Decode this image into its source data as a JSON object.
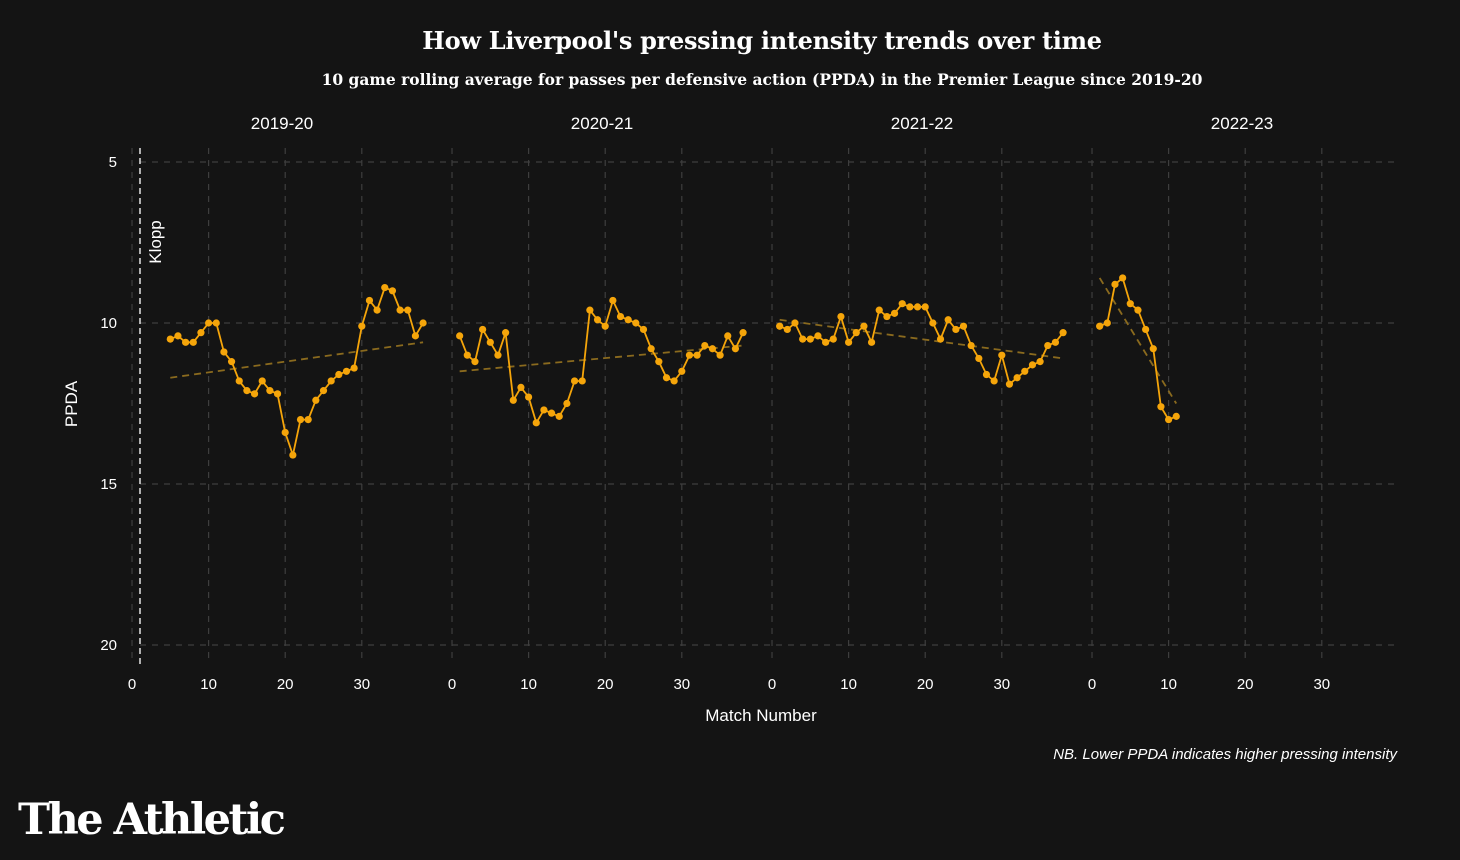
{
  "title": "How Liverpool's pressing intensity trends over time",
  "subtitle": "10 game rolling average for passes per defensive action (PPDA) in the Premier League since 2019-20",
  "note": "NB. Lower PPDA indicates higher pressing intensity",
  "brand": "The Athletic",
  "colors": {
    "background": "#141414",
    "series": "#f5a50a",
    "trend": "#8a6a1e",
    "grid": "#3e3e3e",
    "text": "#ffffff"
  },
  "chart_data": {
    "type": "line",
    "xlabel": "Match Number",
    "ylabel": "PPDA",
    "y_inverted": true,
    "ylim": [
      20,
      5
    ],
    "yticks": [
      5,
      10,
      15,
      20
    ],
    "xlim": [
      0,
      38
    ],
    "xticks": [
      0,
      10,
      20,
      30
    ],
    "grid": true,
    "annotation": "Klopp",
    "panels": [
      {
        "name": "2019-20",
        "x": [
          5,
          6,
          7,
          8,
          9,
          10,
          11,
          12,
          13,
          14,
          15,
          16,
          17,
          18,
          19,
          20,
          21,
          22,
          23,
          24,
          25,
          26,
          27,
          28,
          29,
          30,
          31,
          32,
          33,
          34,
          35,
          36,
          37,
          38
        ],
        "values": [
          10.5,
          10.4,
          10.6,
          10.6,
          10.3,
          10.0,
          10.0,
          10.9,
          11.2,
          11.8,
          12.1,
          12.2,
          11.8,
          12.1,
          12.2,
          13.4,
          14.1,
          13.0,
          13.0,
          12.4,
          12.1,
          11.8,
          11.6,
          11.5,
          11.4,
          10.1,
          9.3,
          9.6,
          8.9,
          9.0,
          9.6,
          9.6,
          10.4,
          10.0
        ],
        "trend": [
          [
            5,
            11.7
          ],
          [
            38,
            10.6
          ]
        ]
      },
      {
        "name": "2020-21",
        "x": [
          1,
          2,
          3,
          4,
          5,
          6,
          7,
          8,
          9,
          10,
          11,
          12,
          13,
          14,
          15,
          16,
          17,
          18,
          19,
          20,
          21,
          22,
          23,
          24,
          25,
          26,
          27,
          28,
          29,
          30,
          31,
          32,
          33,
          34,
          35,
          36,
          37,
          38
        ],
        "values": [
          10.4,
          11.0,
          11.2,
          10.2,
          10.6,
          11.0,
          10.3,
          12.4,
          12.0,
          12.3,
          13.1,
          12.7,
          12.8,
          12.9,
          12.5,
          11.8,
          11.8,
          9.6,
          9.9,
          10.1,
          9.3,
          9.8,
          9.9,
          10.0,
          10.2,
          10.8,
          11.2,
          11.7,
          11.8,
          11.5,
          11.0,
          11.0,
          10.7,
          10.8,
          11.0,
          10.4,
          10.8,
          10.3
        ],
        "trend": [
          [
            1,
            11.5
          ],
          [
            38,
            10.7
          ]
        ]
      },
      {
        "name": "2021-22",
        "x": [
          1,
          2,
          3,
          4,
          5,
          6,
          7,
          8,
          9,
          10,
          11,
          12,
          13,
          14,
          15,
          16,
          17,
          18,
          19,
          20,
          21,
          22,
          23,
          24,
          25,
          26,
          27,
          28,
          29,
          30,
          31,
          32,
          33,
          34,
          35,
          36,
          37,
          38
        ],
        "values": [
          10.1,
          10.2,
          10.0,
          10.5,
          10.5,
          10.4,
          10.6,
          10.5,
          9.8,
          10.6,
          10.3,
          10.1,
          10.6,
          9.6,
          9.8,
          9.7,
          9.4,
          9.5,
          9.5,
          9.5,
          10.0,
          10.5,
          9.9,
          10.2,
          10.1,
          10.7,
          11.1,
          11.6,
          11.8,
          11.0,
          11.9,
          11.7,
          11.5,
          11.3,
          11.2,
          10.7,
          10.6,
          10.3
        ],
        "trend": [
          [
            1,
            9.9
          ],
          [
            38,
            11.1
          ]
        ]
      },
      {
        "name": "2022-23",
        "x": [
          1,
          2,
          3,
          4,
          5,
          6,
          7,
          8,
          9,
          10,
          11
        ],
        "values": [
          10.1,
          10.0,
          8.8,
          8.6,
          9.4,
          9.6,
          10.2,
          10.8,
          12.6,
          13.0,
          12.9
        ],
        "trend": [
          [
            1,
            8.6
          ],
          [
            11,
            12.5
          ]
        ]
      }
    ]
  }
}
